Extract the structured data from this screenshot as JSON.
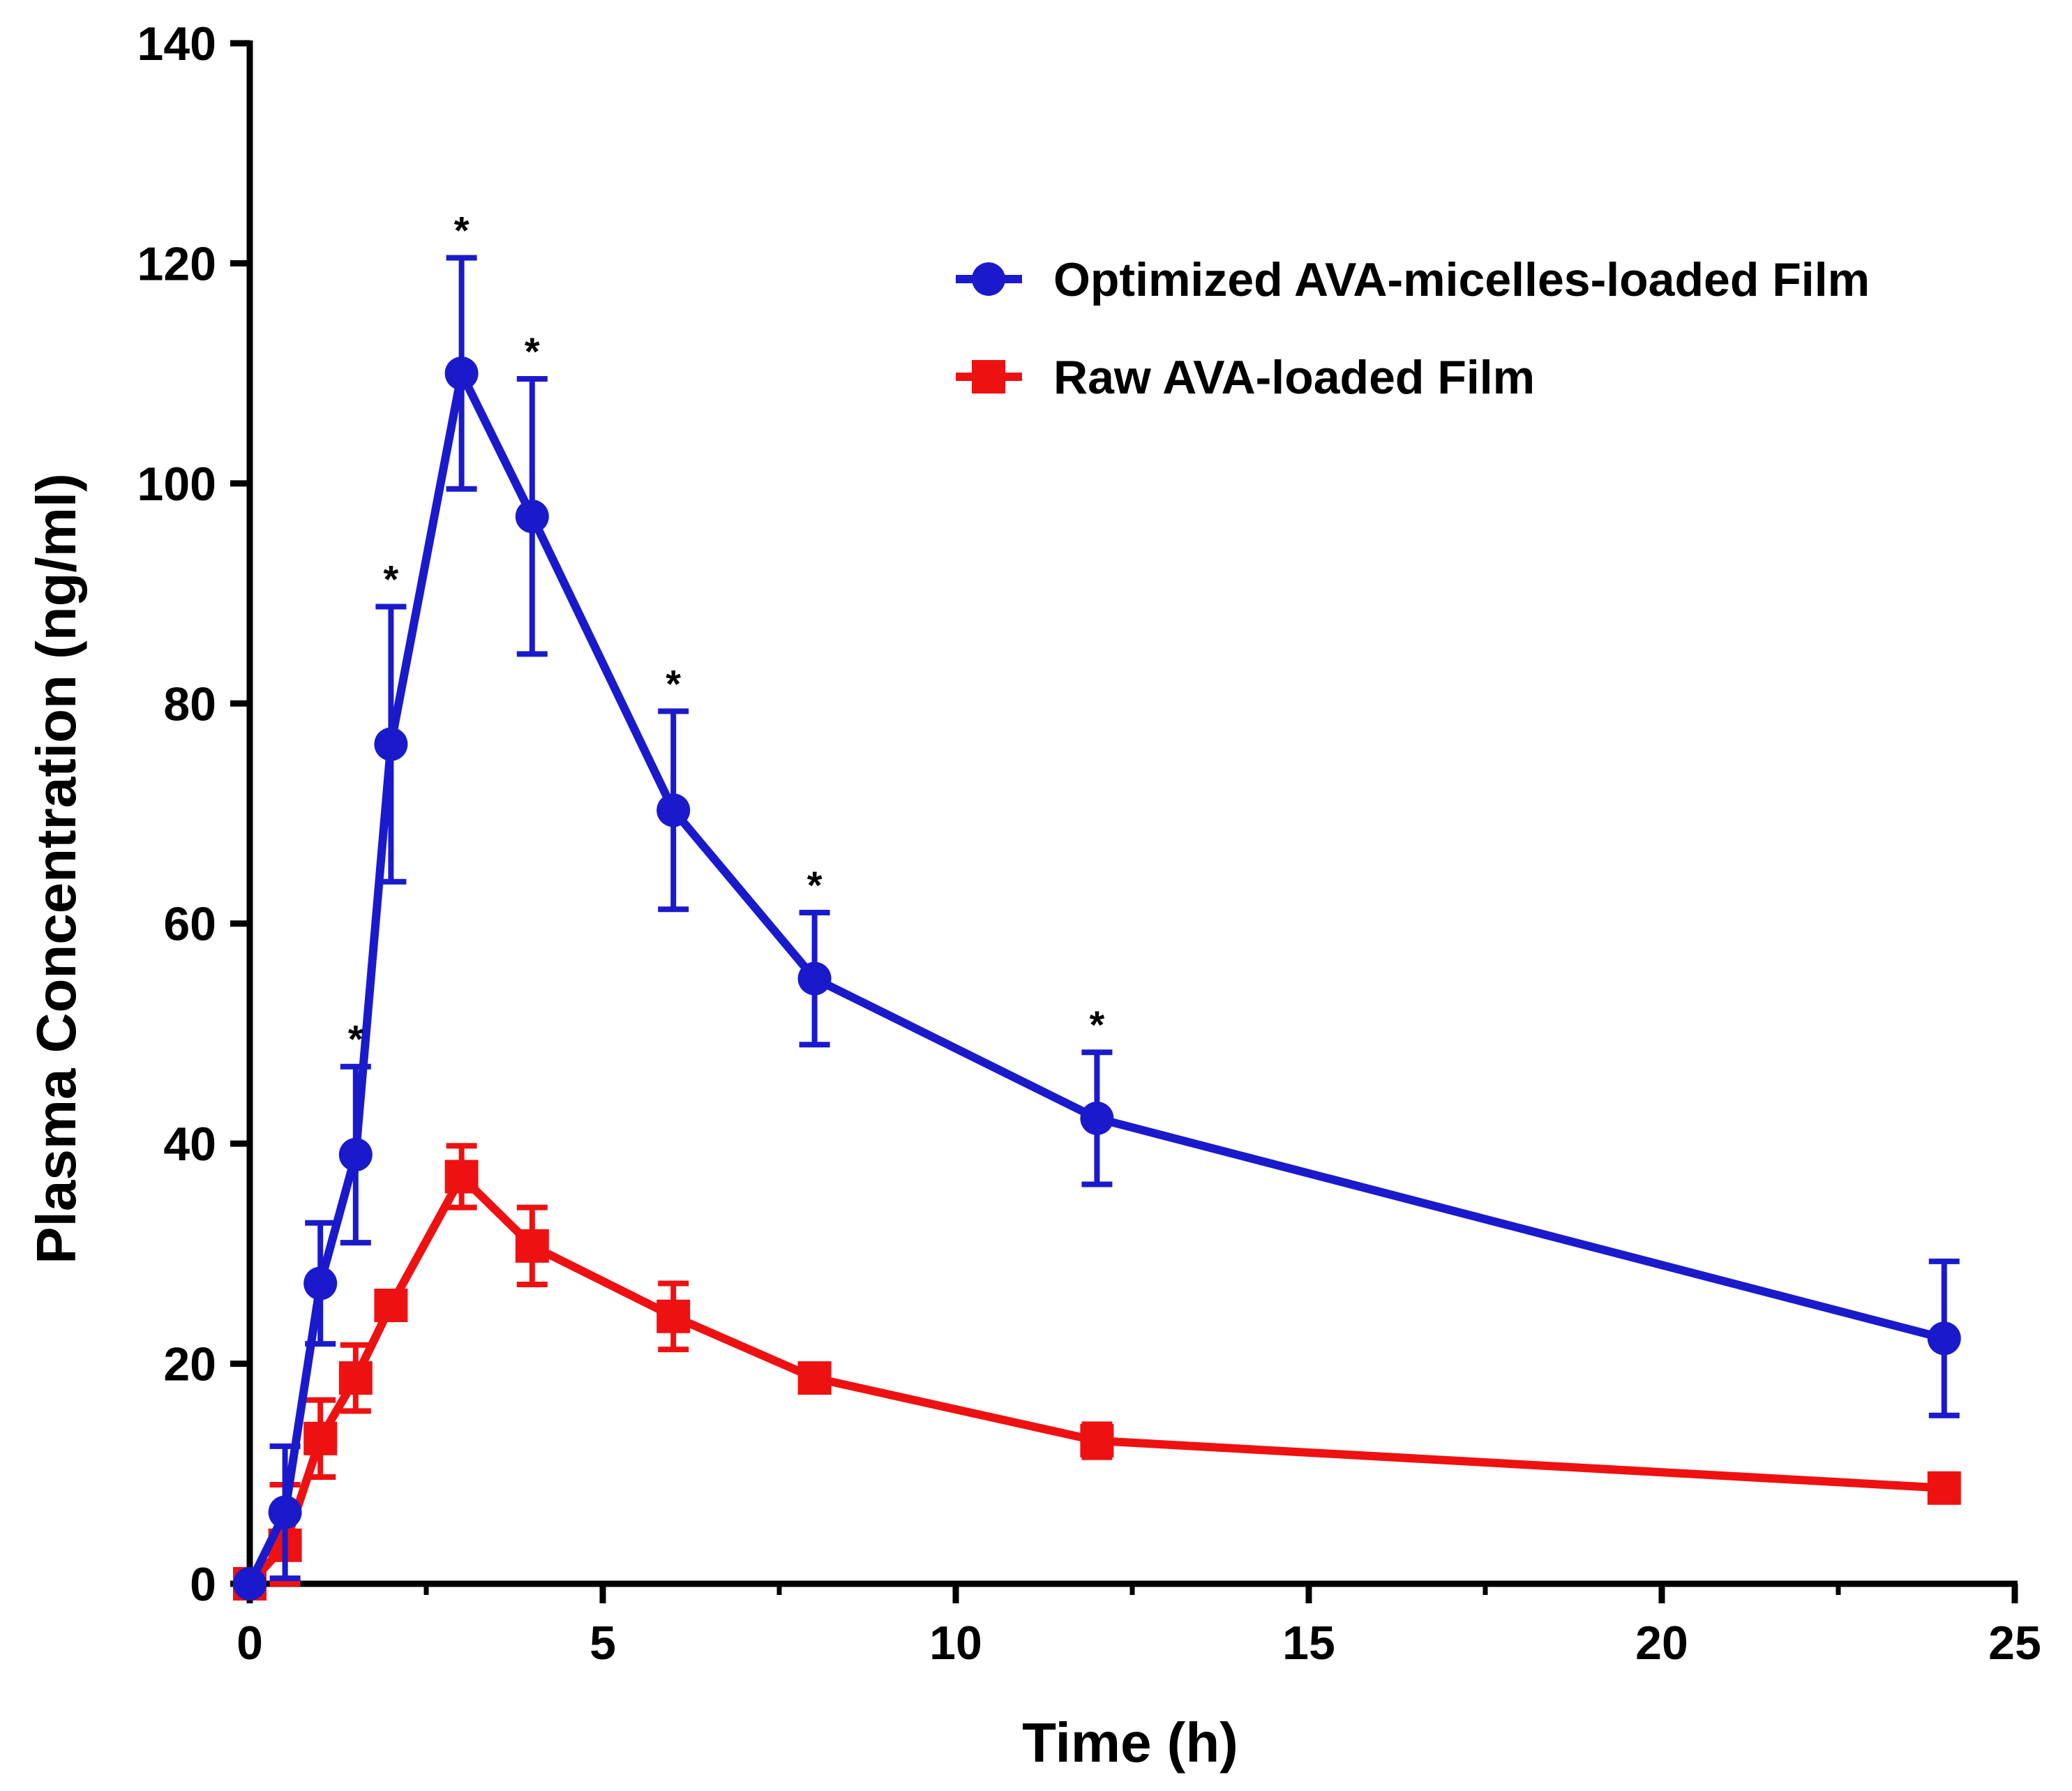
{
  "chart_data": {
    "type": "line",
    "title": "",
    "xlabel": "Time (h)",
    "ylabel": "Plasma Concentration (ng/ml)",
    "xlim": [
      0,
      25
    ],
    "ylim": [
      0,
      140
    ],
    "xticks": [
      0,
      5,
      10,
      15,
      20,
      25
    ],
    "yticks": [
      0,
      20,
      40,
      60,
      80,
      100,
      120,
      140
    ],
    "xtick_labels": [
      "0",
      "5",
      "10",
      "15",
      "20",
      "25"
    ],
    "ytick_labels": [
      "0",
      "20",
      "40",
      "60",
      "80",
      "100",
      "120",
      "140"
    ],
    "grid": false,
    "legend_position": "top-right",
    "series": [
      {
        "name": "Optimized AVA-micelles-loaded Film",
        "color": "#1a1acc",
        "marker": "circle",
        "x": [
          0,
          0.5,
          1,
          1.5,
          2,
          3,
          4,
          6,
          8,
          12,
          24
        ],
        "y": [
          0,
          6.5,
          27.3,
          39,
          76.3,
          110,
          97,
          70.3,
          55,
          42.3,
          22.3
        ],
        "error": [
          0,
          6,
          5.5,
          8,
          12.5,
          10.5,
          12.5,
          9,
          6,
          6,
          7
        ]
      },
      {
        "name": "Raw AVA-loaded Film",
        "color": "#ee1111",
        "marker": "square",
        "x": [
          0,
          0.5,
          1,
          1.5,
          2,
          3,
          4,
          6,
          8,
          12,
          24
        ],
        "y": [
          0,
          3.5,
          13.2,
          18.7,
          25.3,
          37,
          30.7,
          24.3,
          18.7,
          13,
          8.7
        ],
        "error": [
          0,
          5.5,
          3.5,
          3,
          1,
          2.8,
          3.5,
          3,
          0.8,
          1.5,
          0.5
        ]
      }
    ],
    "annotations": [
      {
        "text": "*",
        "x": 1.5
      },
      {
        "text": "*",
        "x": 2
      },
      {
        "text": "*",
        "x": 3
      },
      {
        "text": "*",
        "x": 4
      },
      {
        "text": "*",
        "x": 6
      },
      {
        "text": "*",
        "x": 8
      },
      {
        "text": "*",
        "x": 12
      }
    ]
  }
}
